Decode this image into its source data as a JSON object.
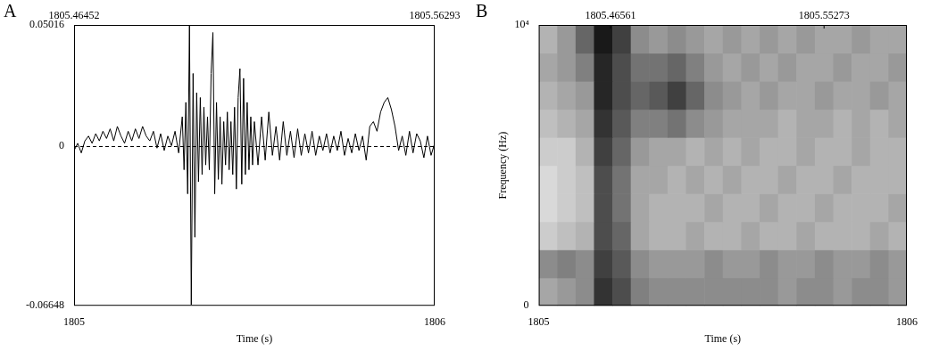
{
  "chart_data": [
    {
      "panel": "A",
      "type": "line",
      "annotations": [
        "1805.46452",
        "1805.56293"
      ],
      "x_label": "Time (s)",
      "color": "#000000",
      "line_style": "solid",
      "grid": true,
      "xlim": [
        1805,
        1806
      ],
      "xticks": [
        1805,
        1806
      ],
      "ylim": [
        -0.06648,
        0.05016
      ],
      "yticks": [
        -0.06648,
        0,
        0.05016
      ],
      "x": [
        1805.0,
        1805.01,
        1805.02,
        1805.03,
        1805.04,
        1805.05,
        1805.06,
        1805.07,
        1805.08,
        1805.09,
        1805.1,
        1805.11,
        1805.12,
        1805.13,
        1805.14,
        1805.15,
        1805.16,
        1805.17,
        1805.18,
        1805.19,
        1805.2,
        1805.21,
        1805.22,
        1805.23,
        1805.24,
        1805.25,
        1805.26,
        1805.27,
        1805.28,
        1805.29,
        1805.3,
        1805.305,
        1805.31,
        1805.315,
        1805.32,
        1805.325,
        1805.33,
        1805.335,
        1805.34,
        1805.345,
        1805.35,
        1805.355,
        1805.36,
        1805.365,
        1805.37,
        1805.375,
        1805.38,
        1805.385,
        1805.39,
        1805.395,
        1805.4,
        1805.405,
        1805.41,
        1805.415,
        1805.42,
        1805.425,
        1805.43,
        1805.435,
        1805.44,
        1805.445,
        1805.45,
        1805.455,
        1805.46,
        1805.465,
        1805.47,
        1805.475,
        1805.48,
        1805.485,
        1805.49,
        1805.495,
        1805.5,
        1805.51,
        1805.52,
        1805.53,
        1805.54,
        1805.55,
        1805.56,
        1805.57,
        1805.58,
        1805.59,
        1805.6,
        1805.61,
        1805.62,
        1805.63,
        1805.64,
        1805.65,
        1805.66,
        1805.67,
        1805.68,
        1805.69,
        1805.7,
        1805.71,
        1805.72,
        1805.73,
        1805.74,
        1805.75,
        1805.76,
        1805.77,
        1805.78,
        1805.79,
        1805.8,
        1805.81,
        1805.82,
        1805.83,
        1805.84,
        1805.85,
        1805.86,
        1805.87,
        1805.88,
        1805.89,
        1805.9,
        1805.91,
        1805.92,
        1805.93,
        1805.94,
        1805.95,
        1805.96,
        1805.97,
        1805.98,
        1805.99,
        1806.0
      ],
      "values": [
        -0.002,
        0.001,
        -0.003,
        0.002,
        0.004,
        0.001,
        0.005,
        0.002,
        0.006,
        0.003,
        0.007,
        0.002,
        0.008,
        0.004,
        0.001,
        0.006,
        0.002,
        0.007,
        0.003,
        0.008,
        0.004,
        0.002,
        0.006,
        -0.001,
        0.005,
        -0.002,
        0.004,
        0.0,
        0.006,
        -0.003,
        0.012,
        -0.01,
        0.018,
        -0.02,
        0.05,
        -0.066,
        0.03,
        -0.038,
        0.022,
        -0.015,
        0.02,
        -0.012,
        0.016,
        -0.008,
        0.012,
        -0.01,
        0.03,
        0.047,
        -0.02,
        0.018,
        -0.014,
        0.012,
        -0.016,
        0.01,
        -0.008,
        0.014,
        -0.01,
        0.01,
        -0.012,
        0.016,
        -0.018,
        0.02,
        0.032,
        -0.016,
        0.028,
        -0.012,
        0.018,
        -0.01,
        0.012,
        -0.008,
        0.01,
        -0.008,
        0.012,
        -0.006,
        0.014,
        -0.004,
        0.008,
        -0.006,
        0.01,
        -0.004,
        0.006,
        -0.005,
        0.007,
        -0.004,
        0.005,
        -0.003,
        0.006,
        -0.004,
        0.004,
        -0.002,
        0.005,
        -0.003,
        0.004,
        -0.002,
        0.006,
        -0.004,
        0.003,
        -0.003,
        0.005,
        -0.002,
        0.004,
        -0.006,
        0.008,
        0.01,
        0.006,
        0.014,
        0.018,
        0.02,
        0.015,
        0.008,
        -0.002,
        0.004,
        -0.004,
        0.006,
        -0.003,
        0.005,
        0.002,
        -0.005,
        0.004,
        -0.004,
        0.001
      ]
    },
    {
      "panel": "B",
      "type": "heatmap",
      "annotations": [
        "1805.46561",
        "1805.55273"
      ],
      "x_label": "Time (s)",
      "y_label": "Frequency (Hz)",
      "xlim": [
        1805,
        1806
      ],
      "xticks": [
        1805,
        1806
      ],
      "ylim": [
        0,
        10000
      ],
      "yticks": [
        0,
        {
          "value": 10000,
          "label": "10⁴"
        }
      ],
      "x_edges": [
        1805.0,
        1805.05,
        1805.1,
        1805.15,
        1805.2,
        1805.25,
        1805.3,
        1805.35,
        1805.4,
        1805.45,
        1805.5,
        1805.55,
        1805.6,
        1805.65,
        1805.7,
        1805.75,
        1805.8,
        1805.85,
        1805.9,
        1805.95,
        1806.0
      ],
      "y_edges": [
        0,
        1000,
        2000,
        3000,
        4000,
        5000,
        6000,
        7000,
        8000,
        9000,
        10000
      ],
      "cells": [
        [
          0.35,
          0.4,
          0.45,
          0.8,
          0.7,
          0.5,
          0.45,
          0.45,
          0.45,
          0.45,
          0.45,
          0.45,
          0.45,
          0.4,
          0.45,
          0.45,
          0.4,
          0.45,
          0.45,
          0.4
        ],
        [
          0.45,
          0.5,
          0.45,
          0.75,
          0.65,
          0.45,
          0.4,
          0.4,
          0.4,
          0.45,
          0.4,
          0.4,
          0.45,
          0.4,
          0.4,
          0.45,
          0.4,
          0.4,
          0.45,
          0.4
        ],
        [
          0.2,
          0.25,
          0.3,
          0.7,
          0.6,
          0.35,
          0.3,
          0.3,
          0.35,
          0.3,
          0.3,
          0.35,
          0.3,
          0.3,
          0.35,
          0.3,
          0.3,
          0.3,
          0.35,
          0.3
        ],
        [
          0.15,
          0.2,
          0.25,
          0.7,
          0.55,
          0.35,
          0.3,
          0.3,
          0.3,
          0.35,
          0.3,
          0.3,
          0.35,
          0.3,
          0.3,
          0.35,
          0.3,
          0.3,
          0.3,
          0.35
        ],
        [
          0.15,
          0.2,
          0.25,
          0.7,
          0.55,
          0.35,
          0.35,
          0.3,
          0.35,
          0.3,
          0.35,
          0.3,
          0.3,
          0.35,
          0.3,
          0.3,
          0.35,
          0.3,
          0.3,
          0.3
        ],
        [
          0.2,
          0.2,
          0.3,
          0.75,
          0.6,
          0.4,
          0.35,
          0.35,
          0.3,
          0.35,
          0.3,
          0.35,
          0.3,
          0.3,
          0.35,
          0.3,
          0.3,
          0.35,
          0.3,
          0.3
        ],
        [
          0.25,
          0.3,
          0.35,
          0.8,
          0.65,
          0.5,
          0.5,
          0.55,
          0.45,
          0.4,
          0.35,
          0.35,
          0.35,
          0.3,
          0.35,
          0.35,
          0.3,
          0.35,
          0.3,
          0.35
        ],
        [
          0.3,
          0.35,
          0.4,
          0.85,
          0.7,
          0.6,
          0.65,
          0.75,
          0.6,
          0.45,
          0.4,
          0.35,
          0.4,
          0.35,
          0.35,
          0.4,
          0.35,
          0.35,
          0.4,
          0.35
        ],
        [
          0.35,
          0.4,
          0.5,
          0.85,
          0.7,
          0.55,
          0.55,
          0.6,
          0.5,
          0.4,
          0.35,
          0.4,
          0.35,
          0.4,
          0.35,
          0.35,
          0.4,
          0.35,
          0.35,
          0.4
        ],
        [
          0.3,
          0.4,
          0.6,
          0.9,
          0.75,
          0.45,
          0.4,
          0.45,
          0.4,
          0.35,
          0.4,
          0.35,
          0.4,
          0.35,
          0.4,
          0.35,
          0.35,
          0.4,
          0.35,
          0.35
        ]
      ]
    }
  ]
}
